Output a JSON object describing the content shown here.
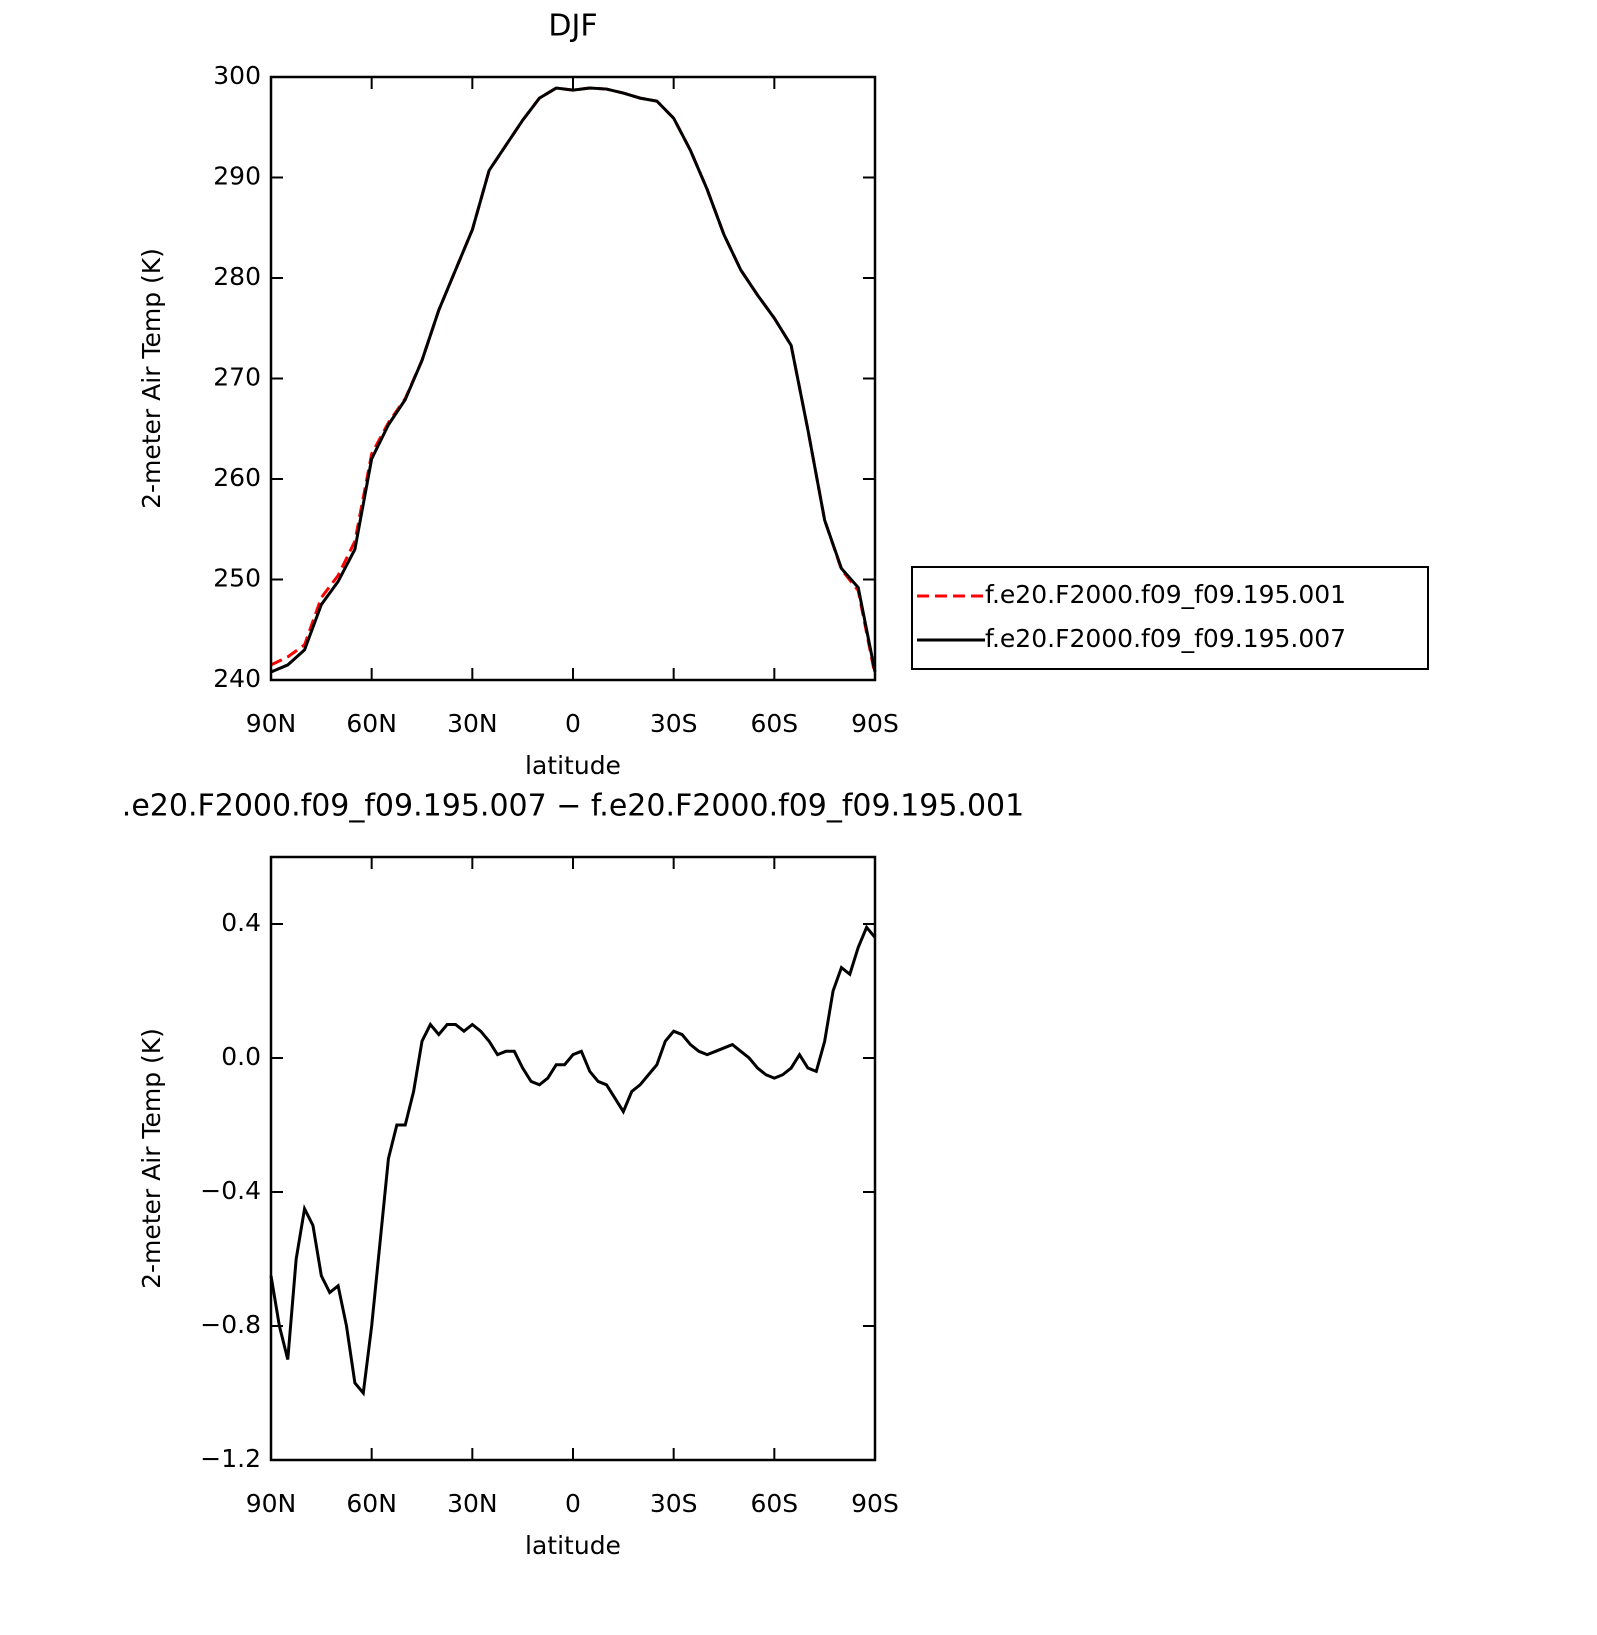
{
  "chart_data": [
    {
      "type": "line",
      "title": "DJF",
      "xlabel": "latitude",
      "ylabel": "2-meter Air Temp (K)",
      "x": [
        90,
        85,
        80,
        75,
        70,
        65,
        60,
        55,
        50,
        45,
        40,
        35,
        30,
        25,
        20,
        15,
        10,
        5,
        0,
        -5,
        -10,
        -15,
        -20,
        -25,
        -30,
        -35,
        -40,
        -45,
        -50,
        -55,
        -60,
        -65,
        -70,
        -75,
        -80,
        -85,
        -90
      ],
      "series": [
        {
          "name": "f.e20.F2000.f09_f09.195.001",
          "color": "#ff0000",
          "dashed": true,
          "values": [
            241.5,
            242.3,
            243.5,
            248.2,
            250.4,
            253.8,
            262.5,
            265.6,
            268.0,
            271.8,
            276.8,
            280.8,
            284.8,
            290.7,
            293.2,
            295.7,
            297.9,
            298.9,
            298.7,
            298.9,
            298.8,
            298.4,
            297.9,
            297.6,
            295.9,
            292.7,
            288.8,
            284.3,
            280.8,
            278.3,
            276.0,
            273.3,
            264.9,
            255.9,
            251.0,
            248.9,
            240.5
          ]
        },
        {
          "name": "f.e20.F2000.f09_f09.195.007",
          "color": "#000000",
          "dashed": false,
          "values": [
            240.8,
            241.5,
            243.0,
            247.5,
            249.8,
            253.0,
            262.0,
            265.4,
            267.9,
            271.8,
            276.8,
            280.8,
            284.8,
            290.7,
            293.2,
            295.7,
            297.9,
            298.9,
            298.7,
            298.9,
            298.8,
            298.4,
            297.9,
            297.6,
            295.9,
            292.7,
            288.8,
            284.3,
            280.8,
            278.3,
            276.0,
            273.3,
            264.9,
            255.9,
            251.1,
            249.2,
            240.8
          ]
        }
      ],
      "xlim": [
        90,
        -90
      ],
      "xticks": [
        {
          "value": 90,
          "label": "90N"
        },
        {
          "value": 60,
          "label": "60N"
        },
        {
          "value": 30,
          "label": "30N"
        },
        0,
        {
          "value": -30,
          "label": "30S"
        },
        {
          "value": -60,
          "label": "60S"
        },
        {
          "value": -90,
          "label": "90S"
        }
      ],
      "ylim": [
        240,
        300
      ],
      "yticks": [
        240,
        250,
        260,
        270,
        280,
        290,
        300
      ],
      "legend": "right"
    },
    {
      "type": "line",
      "title": ".e20.F2000.f09_f09.195.007 − f.e20.F2000.f09_f09.195.001",
      "xlabel": "latitude",
      "ylabel": "2-meter Air Temp (K)",
      "x": [
        90,
        87.5,
        85,
        82.5,
        80,
        77.5,
        75,
        72.5,
        70,
        67.5,
        65,
        62.5,
        60,
        57.5,
        55,
        52.5,
        50,
        47.5,
        45,
        42.5,
        40,
        37.5,
        35,
        32.5,
        30,
        27.5,
        25,
        22.5,
        20,
        17.5,
        15,
        12.5,
        10,
        7.5,
        5,
        2.5,
        0,
        -2.5,
        -5,
        -7.5,
        -10,
        -12.5,
        -15,
        -17.5,
        -20,
        -22.5,
        -25,
        -27.5,
        -30,
        -32.5,
        -35,
        -37.5,
        -40,
        -42.5,
        -45,
        -47.5,
        -50,
        -52.5,
        -55,
        -57.5,
        -60,
        -62.5,
        -65,
        -67.5,
        -70,
        -72.5,
        -75,
        -77.5,
        -80,
        -82.5,
        -85,
        -87.5,
        -90
      ],
      "values": [
        -0.65,
        -0.8,
        -0.9,
        -0.6,
        -0.45,
        -0.5,
        -0.65,
        -0.7,
        -0.68,
        -0.8,
        -0.97,
        -1.0,
        -0.8,
        -0.55,
        -0.3,
        -0.2,
        -0.2,
        -0.1,
        0.05,
        0.1,
        0.07,
        0.1,
        0.1,
        0.08,
        0.1,
        0.08,
        0.05,
        0.01,
        0.02,
        0.02,
        -0.03,
        -0.07,
        -0.08,
        -0.06,
        -0.02,
        -0.02,
        0.01,
        0.02,
        -0.04,
        -0.07,
        -0.08,
        -0.12,
        -0.16,
        -0.1,
        -0.08,
        -0.05,
        -0.02,
        0.05,
        0.08,
        0.07,
        0.04,
        0.02,
        0.01,
        0.02,
        0.03,
        0.04,
        0.02,
        0.0,
        -0.03,
        -0.05,
        -0.06,
        -0.05,
        -0.03,
        0.01,
        -0.03,
        -0.04,
        0.05,
        0.2,
        0.27,
        0.25,
        0.33,
        0.39,
        0.36
      ],
      "color": "#000000",
      "xlim": [
        90,
        -90
      ],
      "xticks": [
        {
          "value": 90,
          "label": "90N"
        },
        {
          "value": 60,
          "label": "60N"
        },
        {
          "value": 30,
          "label": "30N"
        },
        0,
        {
          "value": -30,
          "label": "30S"
        },
        {
          "value": -60,
          "label": "60S"
        },
        {
          "value": -90,
          "label": "90S"
        }
      ],
      "ylim": [
        -1.2,
        0.6
      ],
      "yticks": [
        {
          "value": -1.2,
          "label": "−1.2"
        },
        {
          "value": -0.8,
          "label": "−0.8"
        },
        {
          "value": -0.4,
          "label": "−0.4"
        },
        {
          "value": 0,
          "label": "0.0"
        },
        0.4
      ]
    }
  ]
}
